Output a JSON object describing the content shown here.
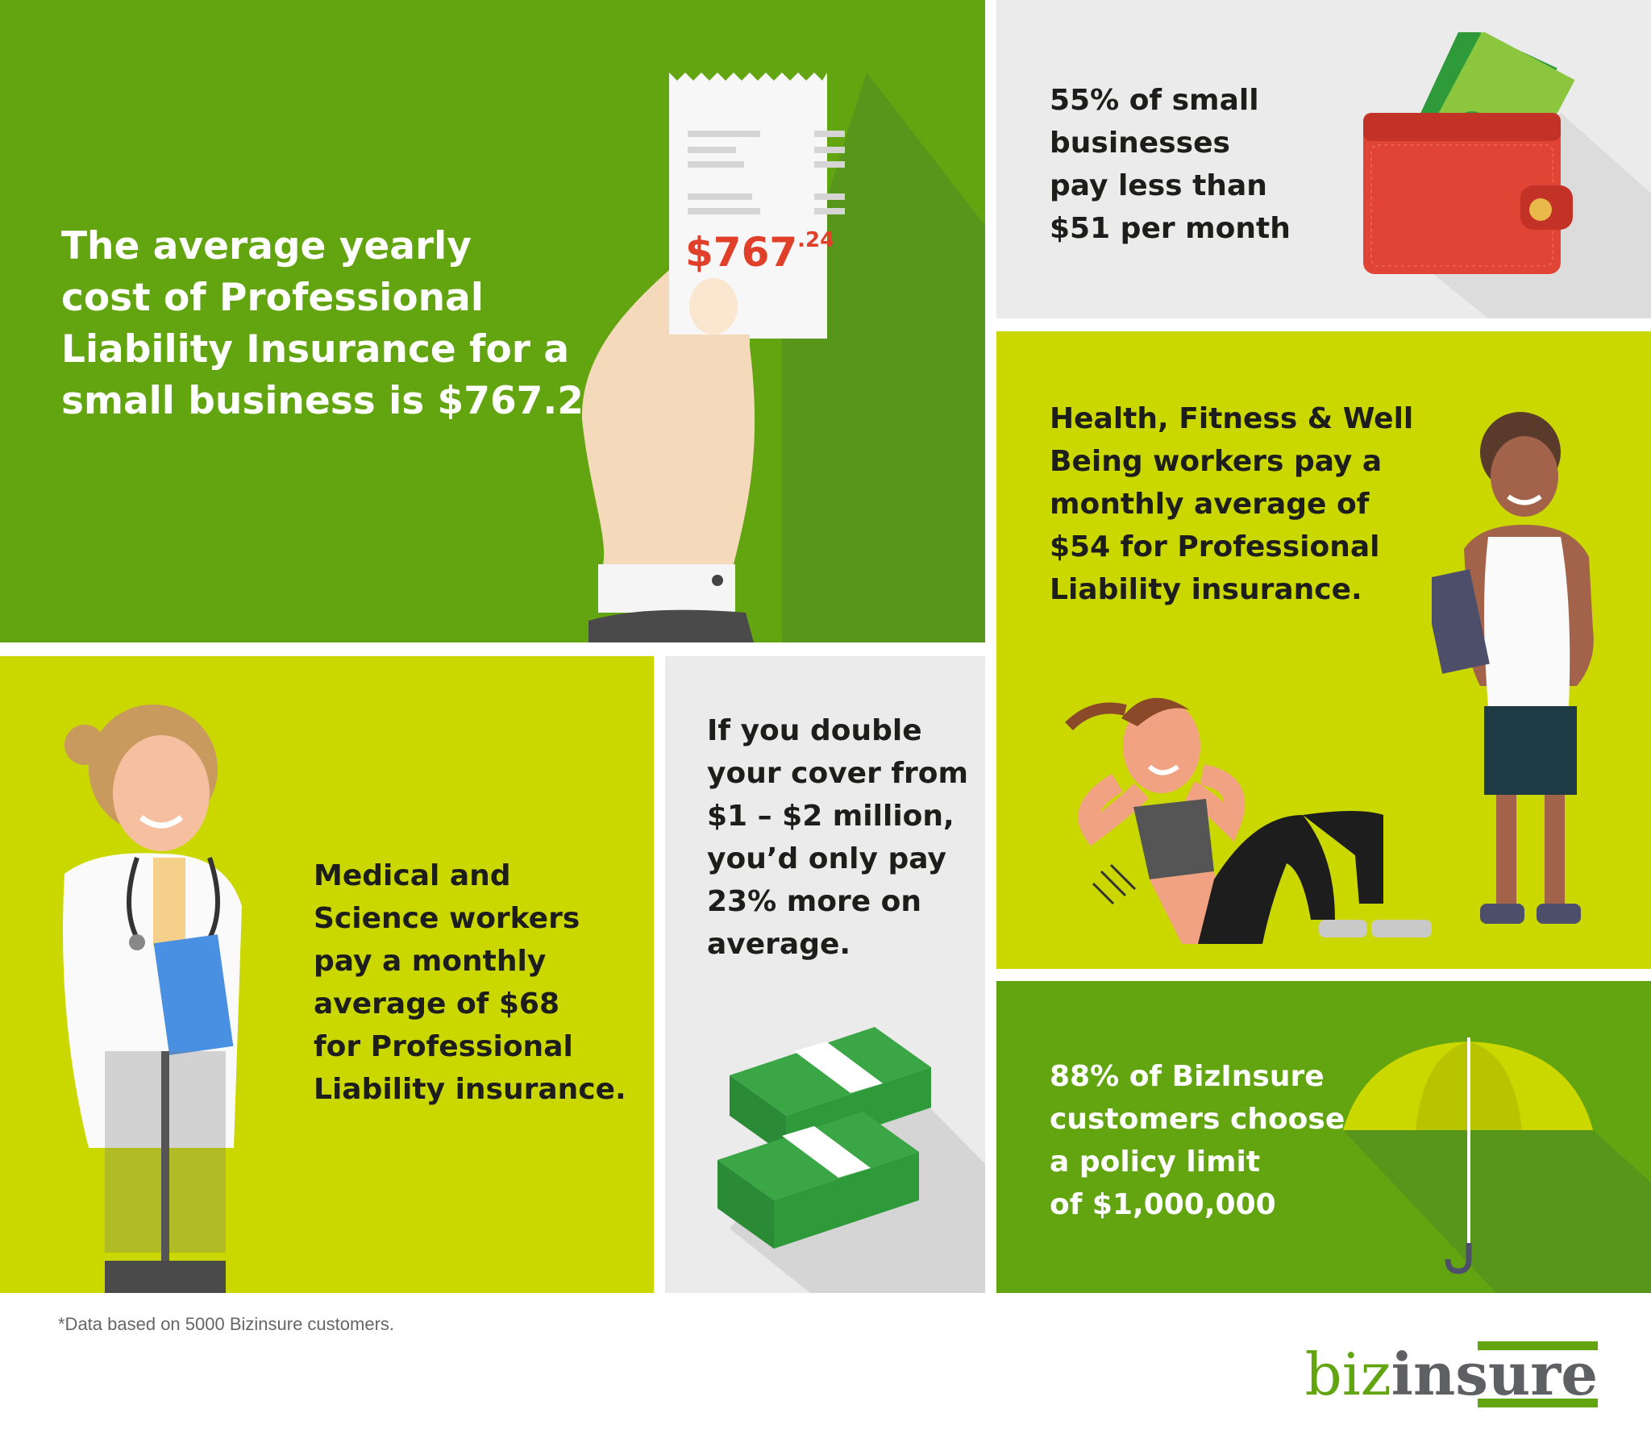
{
  "panels": {
    "average_cost": {
      "text": "The average yearly\ncost of Professional\nLiability Insurance for a\nsmall business is $767.24",
      "receipt_main": "$767",
      "receipt_cents": ".24"
    },
    "small_business": {
      "text": "55% of small\nbusinesses\npay less than\n$51 per month"
    },
    "health_fitness": {
      "text": "Health, Fitness & Well\nBeing workers pay a\nmonthly average of\n$54 for Professional\nLiability insurance."
    },
    "medical_science": {
      "text": "Medical and\nScience workers\npay a monthly\naverage of $68\nfor Professional\nLiability insurance."
    },
    "double_cover": {
      "text": "If you double\nyour cover from\n$1 – $2 million,\nyou’d only pay\n23% more on\naverage."
    },
    "policy_limit": {
      "text": "88% of BizInsure\ncustomers choose\na policy limit\nof $1,000,000"
    }
  },
  "footnote": "*Data based on 5000 Bizinsure customers.",
  "logo": {
    "part1": "biz",
    "part2": "insure"
  },
  "colors": {
    "green": "#62a511",
    "lime": "#cbd800",
    "grey": "#ebebeb",
    "accent_red": "#e0402a",
    "logo_grey": "#5f6064"
  },
  "icons": [
    "receipt-hand-icon",
    "wallet-cash-icon",
    "trainer-icon",
    "situp-woman-icon",
    "doctor-icon",
    "money-stacks-icon",
    "umbrella-icon"
  ]
}
